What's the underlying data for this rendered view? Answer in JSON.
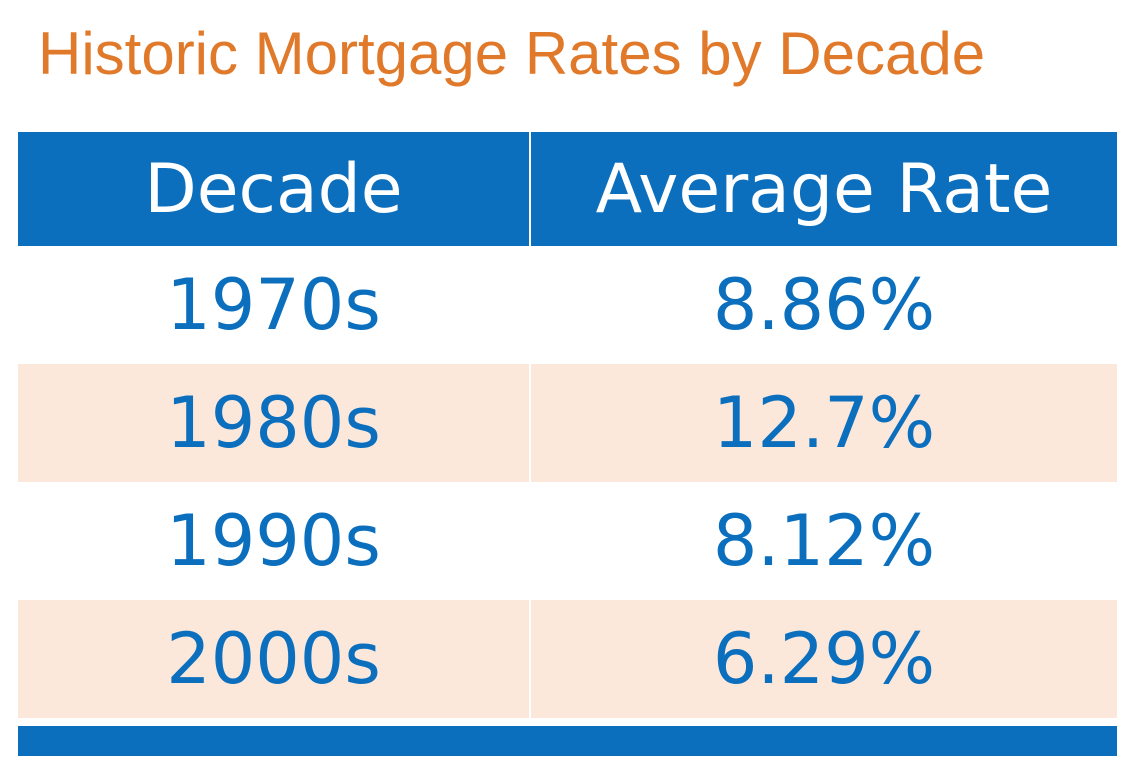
{
  "colors": {
    "title": "#e07a2a",
    "header_bg": "#0b6fbe",
    "header_text": "#ffffff",
    "cell_text": "#0b6fbe",
    "row_white": "#ffffff",
    "row_peach": "#fbe8db",
    "footer_bar": "#0b6fbe"
  },
  "chart_data": {
    "type": "table",
    "title": "Historic Mortgage Rates by Decade",
    "columns": [
      "Decade",
      "Average Rate"
    ],
    "rows": [
      [
        "1970s",
        "8.86%"
      ],
      [
        "1980s",
        "12.7%"
      ],
      [
        "1990s",
        "8.12%"
      ],
      [
        "2000s",
        "6.29%"
      ]
    ]
  }
}
